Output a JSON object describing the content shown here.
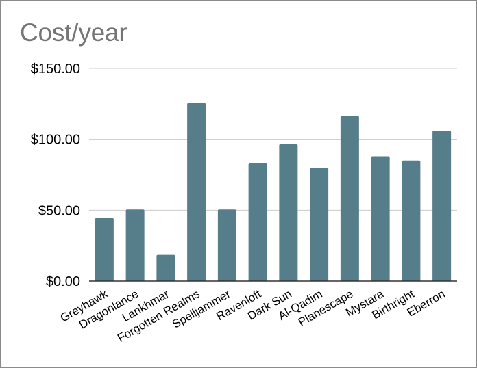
{
  "chart_data": {
    "type": "bar",
    "title": "Cost/year",
    "xlabel": "",
    "ylabel": "",
    "categories": [
      "Greyhawk",
      "Dragonlance",
      "Lankhmar",
      "Forgotten Realms",
      "Spelljammer",
      "Ravenloft",
      "Dark Sun",
      "Al-Qadim",
      "Planescape",
      "Mystara",
      "Birthright",
      "Eberron"
    ],
    "values": [
      44.5,
      50.5,
      18.5,
      125.5,
      50.5,
      83,
      96.5,
      80,
      116.5,
      88,
      85,
      106
    ],
    "ylim": [
      0,
      150
    ],
    "yticks": [
      0,
      50,
      100,
      150
    ],
    "ytick_labels": [
      "$0.00",
      "$50.00",
      "$100.00",
      "$150.00"
    ],
    "grid": true,
    "bar_color": "#557d8a",
    "grid_color": "#cccccc",
    "axis_color": "#333333"
  }
}
